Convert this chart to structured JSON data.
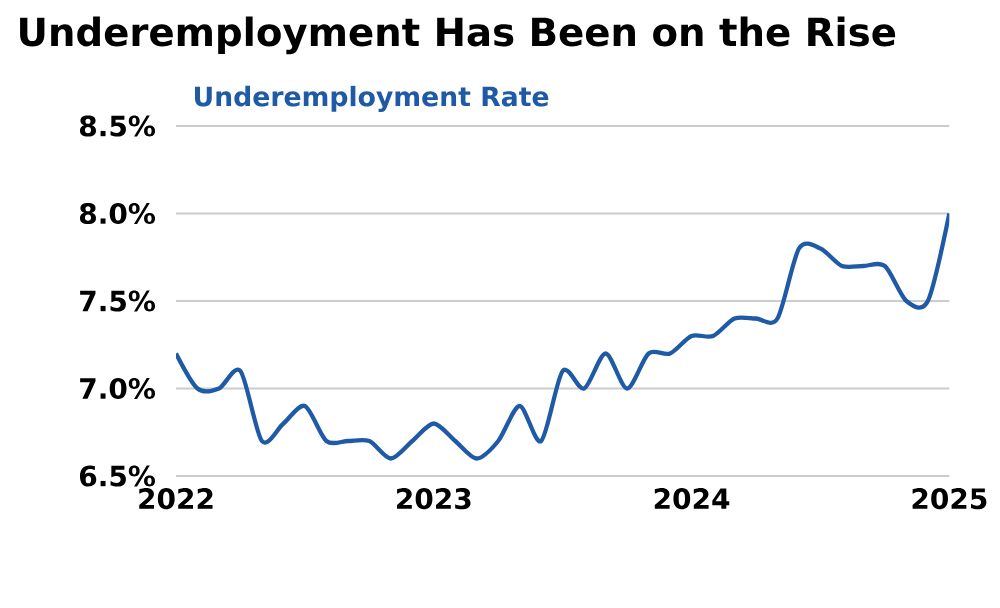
{
  "chart_data": {
    "type": "line",
    "title": "Underemployment Has Been on the Rise",
    "subtitle": "Underemployment Rate",
    "x": [
      "2022-01",
      "2022-02",
      "2022-03",
      "2022-04",
      "2022-05",
      "2022-06",
      "2022-07",
      "2022-08",
      "2022-09",
      "2022-10",
      "2022-11",
      "2022-12",
      "2023-01",
      "2023-02",
      "2023-03",
      "2023-04",
      "2023-05",
      "2023-06",
      "2023-07",
      "2023-08",
      "2023-09",
      "2023-10",
      "2023-11",
      "2023-12",
      "2024-01",
      "2024-02",
      "2024-03",
      "2024-04",
      "2024-05",
      "2024-06",
      "2024-07",
      "2024-08",
      "2024-09",
      "2024-10",
      "2024-11",
      "2024-12",
      "2025-01"
    ],
    "series": [
      {
        "color": "#1f5aa6",
        "values": [
          7.2,
          7.0,
          7.0,
          7.1,
          6.7,
          6.8,
          6.9,
          6.7,
          6.7,
          6.7,
          6.6,
          6.7,
          6.8,
          6.7,
          6.6,
          6.7,
          6.9,
          6.7,
          7.1,
          7.0,
          7.2,
          7.0,
          7.2,
          7.2,
          7.3,
          7.3,
          7.4,
          7.4,
          7.4,
          7.8,
          7.8,
          7.7,
          7.7,
          7.7,
          7.5,
          7.5,
          8.0
        ]
      }
    ],
    "xlim": [
      "2022-01",
      "2025-01"
    ],
    "xticks": [
      "2022",
      "2023",
      "2024",
      "2025"
    ],
    "ylim": [
      6.5,
      8.5
    ],
    "yticks": [
      {
        "value": 6.5,
        "label": "6.5%"
      },
      {
        "value": 7.0,
        "label": "7.0%"
      },
      {
        "value": 7.5,
        "label": "7.5%"
      },
      {
        "value": 8.0,
        "label": "8.0%"
      },
      {
        "value": 8.5,
        "label": "8.5%"
      }
    ],
    "grid": "y",
    "marker": "none",
    "line_style": "solid"
  }
}
